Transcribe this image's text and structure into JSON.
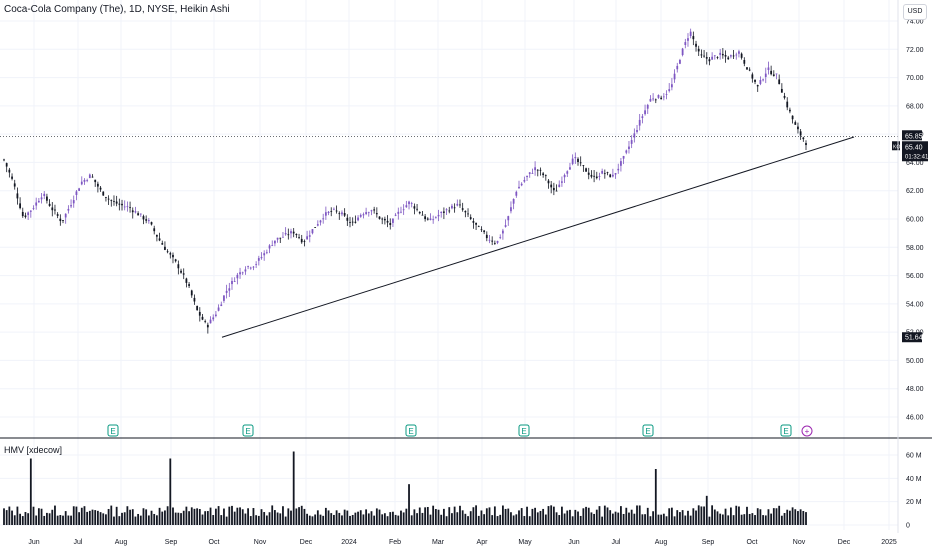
{
  "header": {
    "title": "Coca-Cola Company (The), 1D, NYSE, Heikin Ashi",
    "currency_button": "USD"
  },
  "price_labels": {
    "current_high": "65.85",
    "symbol": "KO",
    "current_price": "65.40",
    "countdown": "01:32:41",
    "trendline_anchor": "51.64"
  },
  "indicator": {
    "title": "HMV [xdecow]",
    "yticks": [
      "60 M",
      "40 M",
      "20 M",
      "0"
    ]
  },
  "events": {
    "earnings_label": "E",
    "plus_label": "+"
  },
  "colors": {
    "up_candle": "#7e57c2",
    "down_candle": "#131722",
    "trendline": "#131722",
    "volume_bar": "#131722",
    "earnings_icon": "#089981",
    "plus_icon": "#9c27b0"
  },
  "chart_data": [
    {
      "type": "candlestick",
      "title": "Coca-Cola Company (The), 1D, NYSE, Heikin Ashi",
      "x_tick_labels": [
        "Jun",
        "Jul",
        "Aug",
        "Sep",
        "Oct",
        "Nov",
        "Dec",
        "2024",
        "Feb",
        "Mar",
        "Apr",
        "May",
        "Jun",
        "Jul",
        "Aug",
        "Sep",
        "Oct",
        "Nov",
        "Dec",
        "2025"
      ],
      "y_tick_labels": [
        "74.00",
        "72.00",
        "70.00",
        "68.00",
        "66.00",
        "64.00",
        "62.00",
        "60.00",
        "58.00",
        "56.00",
        "54.00",
        "52.00",
        "50.00",
        "48.00",
        "46.00"
      ],
      "ylim": [
        44.5,
        74.5
      ],
      "close_series": [
        64.2,
        62.5,
        60.1,
        60.8,
        61.8,
        60.7,
        59.8,
        61.2,
        62.6,
        63.1,
        62.0,
        61.3,
        61.0,
        60.8,
        60.3,
        59.8,
        58.6,
        57.6,
        56.7,
        55.4,
        53.5,
        52.4,
        53.4,
        54.9,
        55.9,
        56.6,
        56.8,
        57.6,
        58.5,
        58.8,
        59.1,
        58.4,
        59.3,
        60.2,
        60.6,
        60.3,
        59.6,
        60.4,
        60.7,
        60.0,
        59.6,
        60.6,
        61.2,
        60.5,
        59.8,
        60.3,
        60.7,
        61.0,
        60.2,
        59.4,
        58.7,
        58.3,
        59.7,
        62.0,
        62.9,
        63.6,
        63.0,
        61.8,
        63.2,
        64.3,
        63.6,
        62.9,
        63.3,
        63.0,
        64.1,
        65.6,
        67.2,
        68.6,
        68.6,
        69.2,
        71.5,
        73.3,
        71.5,
        71.3,
        71.6,
        71.4,
        71.9,
        70.6,
        69.3,
        70.6,
        70.1,
        68.1,
        66.4,
        65.4
      ],
      "up_days_approx": "purple candles",
      "down_days_approx": "black candles",
      "current_price": 65.4,
      "current_high": 65.85,
      "trendline": {
        "start": {
          "date": "Oct",
          "value": 51.64
        },
        "end": {
          "date": "Nov",
          "value": 65.8
        }
      }
    },
    {
      "type": "bar",
      "title": "HMV [xdecow]",
      "ylim": [
        0,
        65
      ],
      "yticks": [
        "60 M",
        "40 M",
        "20 M",
        "0"
      ],
      "spikes_millions": [
        {
          "position": "late May",
          "value": 57
        },
        {
          "position": "early Sep",
          "value": 57
        },
        {
          "position": "mid Dec",
          "value": 63
        },
        {
          "position": "mid Mar",
          "value": 35
        },
        {
          "position": "early Sep",
          "value": 48
        },
        {
          "position": "mid Oct",
          "value": 25
        }
      ],
      "typical_level_millions": 13
    }
  ]
}
